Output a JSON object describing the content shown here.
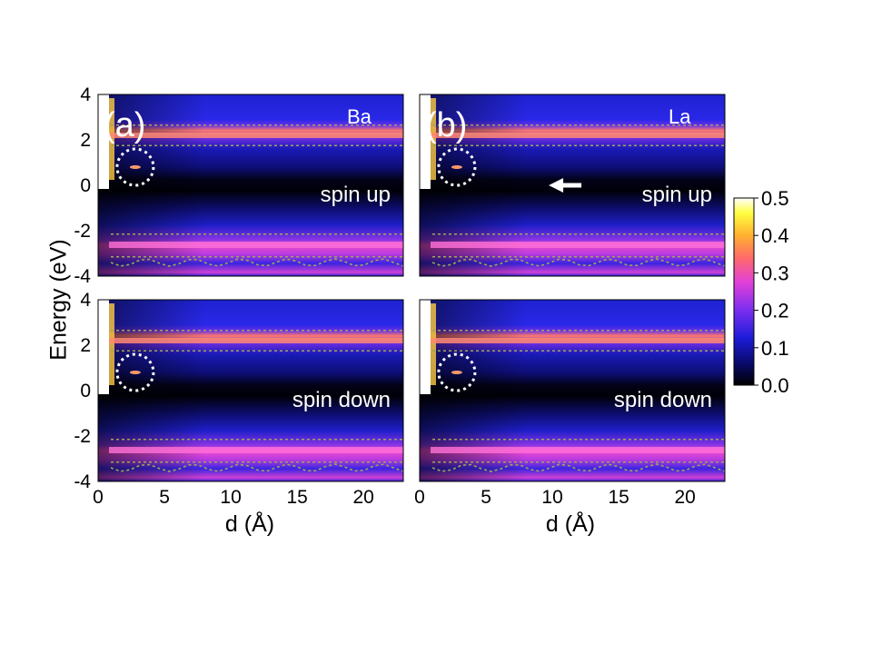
{
  "chart_data": {
    "type": "heatmap",
    "xlabel": "d (Å)",
    "ylabel": "Energy (eV)",
    "xlim": [
      0,
      23
    ],
    "ylim": [
      -4,
      4
    ],
    "xticks": [
      "0",
      "5",
      "10",
      "15",
      "20"
    ],
    "yticks": [
      "4",
      "2",
      "0",
      "-2",
      "-4"
    ],
    "colorbar": {
      "range": [
        0.0,
        0.5
      ],
      "ticks": [
        "0.5",
        "0.4",
        "0.3",
        "0.2",
        "0.1",
        "0.0"
      ],
      "colormap": [
        "#000000",
        "#0a0a6e",
        "#1c1cd8",
        "#7a2ef0",
        "#e240d8",
        "#ff6a6a",
        "#ffb030",
        "#ffff40",
        "#ffffff"
      ]
    },
    "panels": [
      {
        "label": "(a)",
        "element": "Ba",
        "spin": "spin up",
        "column": 0,
        "row": 0
      },
      {
        "label": "(b)",
        "element": "La",
        "spin": "spin up",
        "column": 1,
        "row": 0
      },
      {
        "label": "",
        "element": "",
        "spin": "spin down",
        "column": 0,
        "row": 1
      },
      {
        "label": "",
        "element": "",
        "spin": "spin down",
        "column": 1,
        "row": 1
      }
    ],
    "features": {
      "conduction_band_energy": 2.2,
      "valence_band_energy": -2.6,
      "gap_state_energy": 0.8,
      "gap_state_d": 2.8,
      "contour_value": 0.2
    },
    "annotations": [
      "dotted circle around gap state",
      "arrow pointing left at Energy 0 in panel (b)"
    ]
  },
  "colors": {
    "background": "#ffffff",
    "contour": "#9aa85a",
    "annotation": "#ffffff"
  }
}
